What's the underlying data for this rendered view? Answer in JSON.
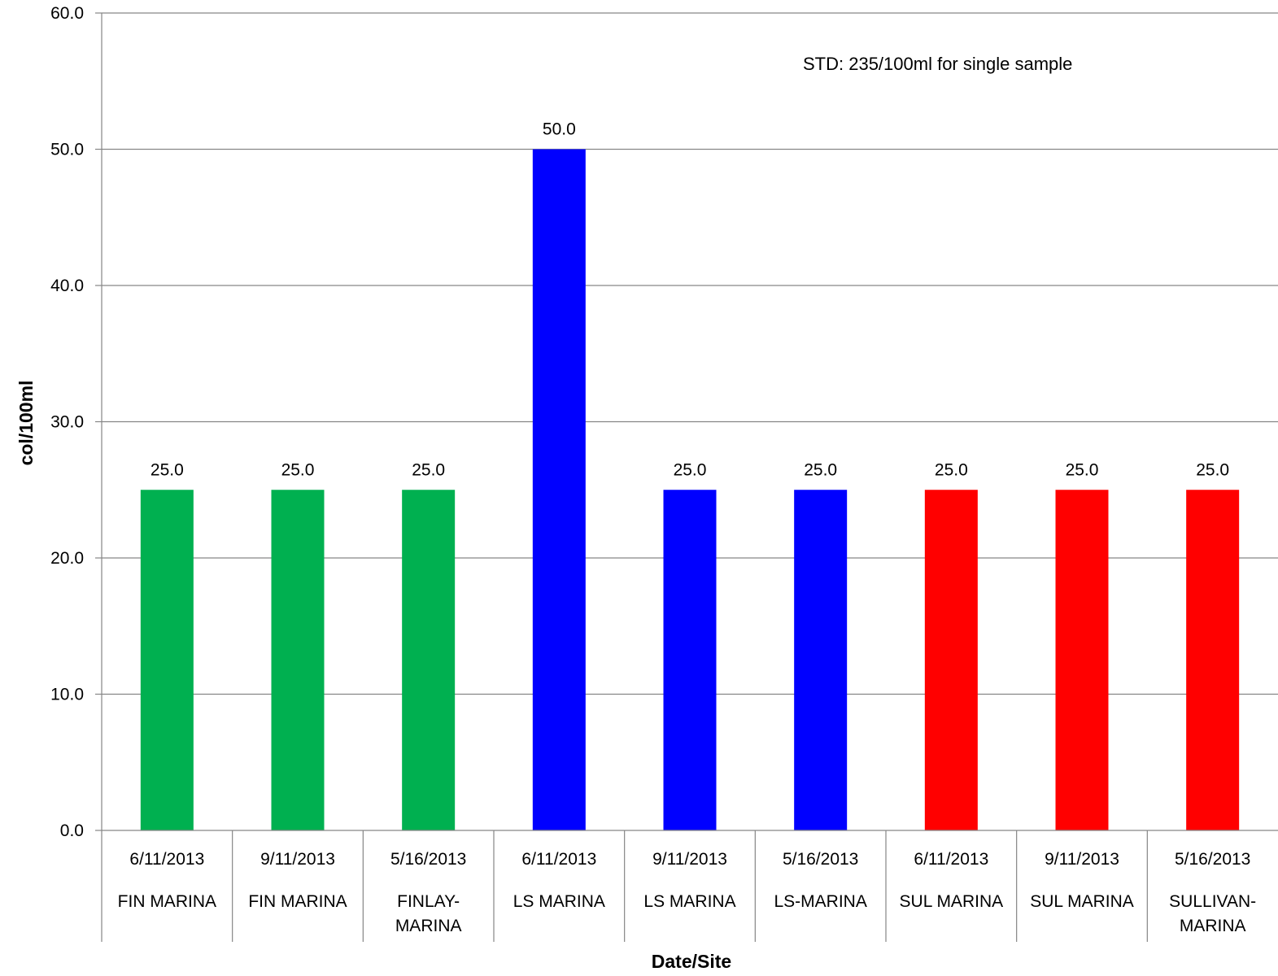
{
  "chart_data": {
    "type": "bar",
    "ylabel": "col/100ml",
    "xlabel": "Date/Site",
    "ylim": [
      0,
      60
    ],
    "ytick_step": 10,
    "grid": true,
    "annotation": "STD: 235/100ml for single sample",
    "categories": [
      {
        "date": "6/11/2013",
        "site": [
          "FIN MARINA"
        ]
      },
      {
        "date": "9/11/2013",
        "site": [
          "FIN MARINA"
        ]
      },
      {
        "date": "5/16/2013",
        "site": [
          "FINLAY-",
          "MARINA"
        ]
      },
      {
        "date": "6/11/2013",
        "site": [
          "LS MARINA"
        ]
      },
      {
        "date": "9/11/2013",
        "site": [
          "LS MARINA"
        ]
      },
      {
        "date": "5/16/2013",
        "site": [
          "LS-MARINA"
        ]
      },
      {
        "date": "6/11/2013",
        "site": [
          "SUL MARINA"
        ]
      },
      {
        "date": "9/11/2013",
        "site": [
          "SUL MARINA"
        ]
      },
      {
        "date": "5/16/2013",
        "site": [
          "SULLIVAN-",
          "MARINA"
        ]
      }
    ],
    "values": [
      25.0,
      25.0,
      25.0,
      50.0,
      25.0,
      25.0,
      25.0,
      25.0,
      25.0
    ],
    "value_labels": [
      "25.0",
      "25.0",
      "25.0",
      "50.0",
      "25.0",
      "25.0",
      "25.0",
      "25.0",
      "25.0"
    ],
    "bar_colors": [
      "#00B050",
      "#00B050",
      "#00B050",
      "#0000FF",
      "#0000FF",
      "#0000FF",
      "#FF0000",
      "#FF0000",
      "#FF0000"
    ],
    "gridline_color": "#868686"
  }
}
